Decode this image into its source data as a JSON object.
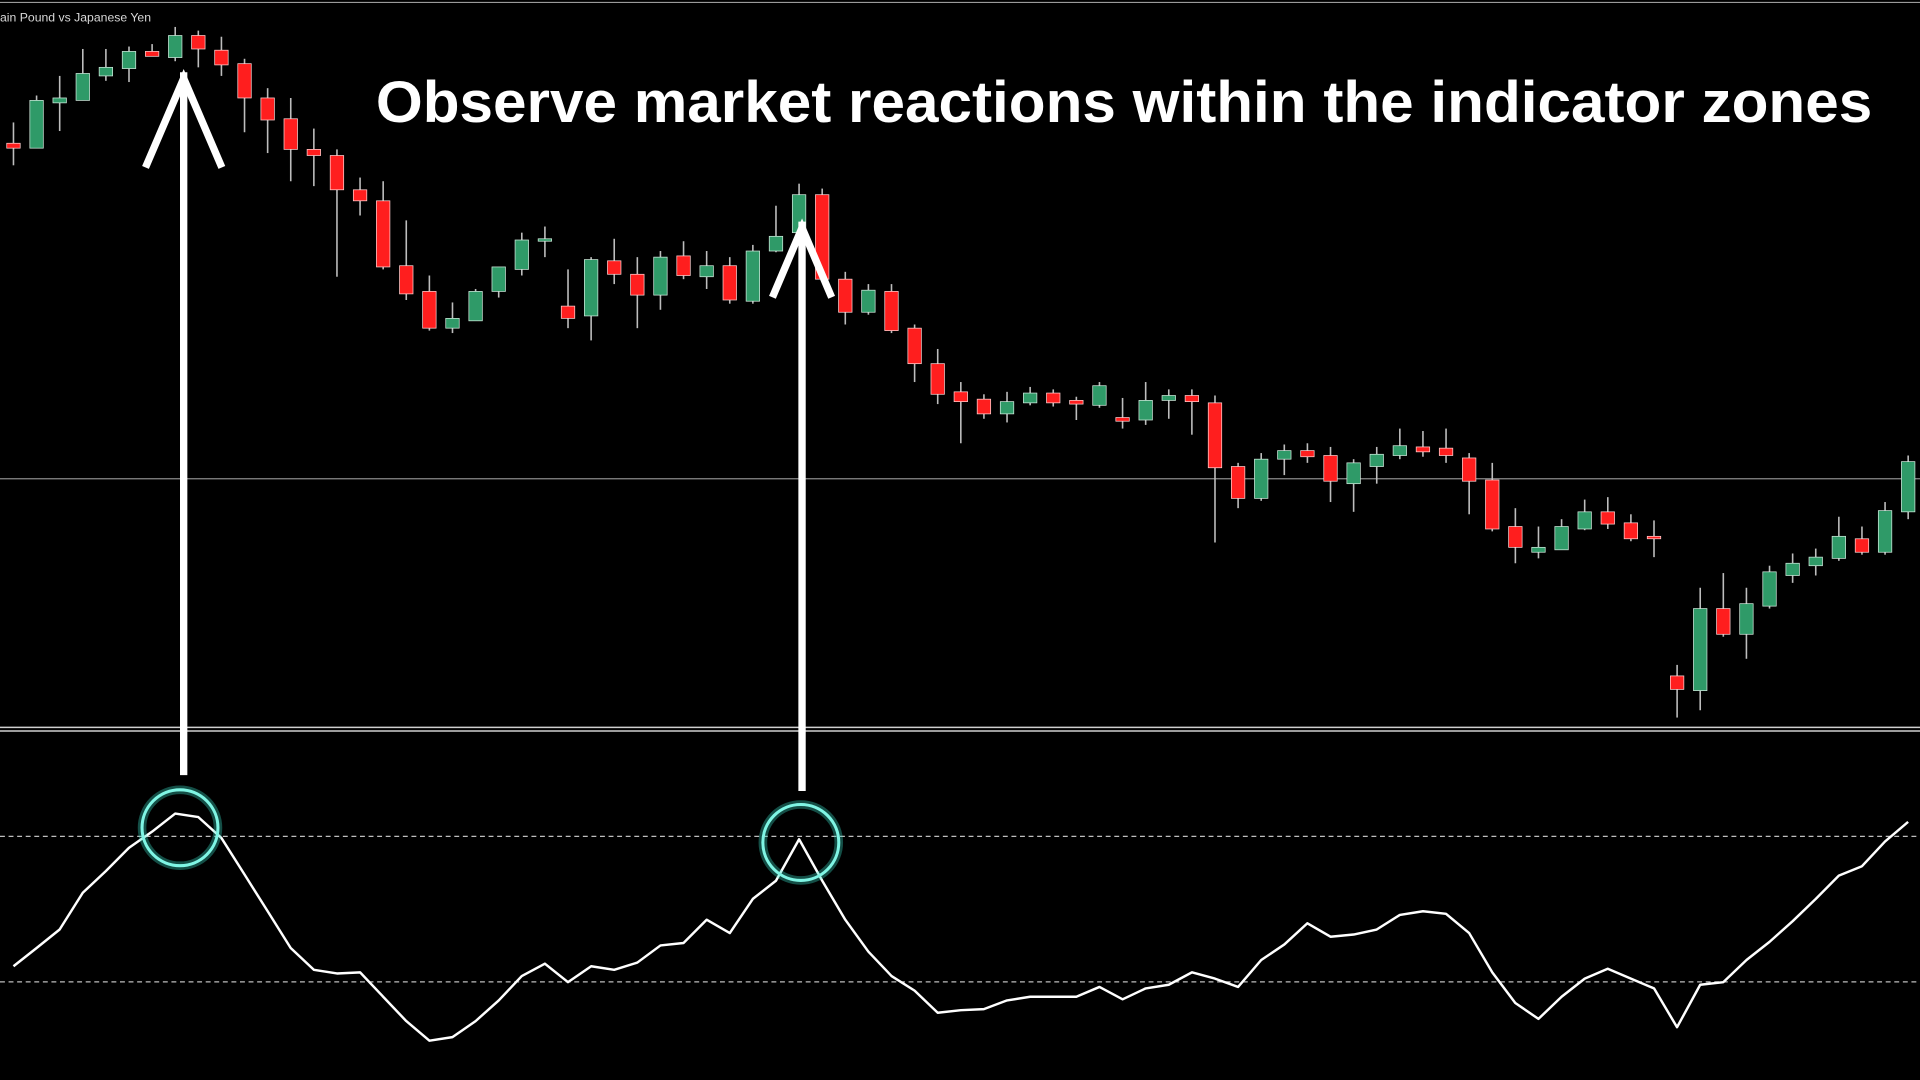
{
  "chart_data": [
    {
      "type": "candlestick",
      "title": "ain Pound vs Japanese Yen",
      "annotation": "Observe market reactions within the indicator zones",
      "open": [
        483,
        479,
        516,
        518,
        538,
        544,
        558,
        553,
        571,
        559,
        548,
        520,
        503,
        478,
        473,
        445,
        436,
        383,
        362,
        332,
        338,
        362,
        380,
        403,
        350,
        342,
        387,
        376,
        359,
        391,
        374,
        383,
        354,
        395,
        410,
        441,
        372,
        345,
        362,
        332,
        303,
        280,
        274,
        262,
        271,
        279,
        273,
        269,
        259,
        257,
        273,
        277,
        271,
        219,
        193,
        225,
        232,
        228,
        205,
        219,
        228,
        235,
        234,
        226,
        208,
        170,
        149,
        151,
        168,
        182,
        173,
        162,
        48,
        36,
        103,
        82,
        105,
        130,
        138,
        144,
        160,
        149,
        182
      ],
      "high": [
        500,
        522,
        538,
        560,
        560,
        562,
        564,
        578,
        575,
        570,
        552,
        528,
        520,
        495,
        478,
        455,
        452,
        420,
        375,
        353,
        364,
        382,
        410,
        415,
        380,
        390,
        405,
        390,
        395,
        403,
        395,
        390,
        400,
        432,
        450,
        446,
        378,
        368,
        368,
        335,
        315,
        288,
        278,
        280,
        284,
        282,
        276,
        288,
        275,
        288,
        282,
        282,
        277,
        222,
        230,
        237,
        238,
        235,
        225,
        235,
        250,
        248,
        250,
        230,
        222,
        185,
        170,
        176,
        192,
        194,
        180,
        175,
        57,
        120,
        132,
        120,
        138,
        148,
        152,
        178,
        170,
        190,
        228
      ],
      "low": [
        465,
        479,
        493,
        518,
        534,
        533,
        554,
        550,
        545,
        538,
        492,
        475,
        452,
        448,
        374,
        424,
        380,
        355,
        330,
        328,
        338,
        357,
        375,
        390,
        332,
        322,
        368,
        332,
        347,
        372,
        364,
        352,
        352,
        394,
        405,
        370,
        335,
        343,
        328,
        288,
        270,
        238,
        258,
        255,
        269,
        268,
        257,
        267,
        250,
        253,
        258,
        245,
        157,
        185,
        191,
        212,
        222,
        190,
        182,
        205,
        225,
        227,
        222,
        180,
        166,
        140,
        144,
        151,
        167,
        168,
        158,
        145,
        14,
        20,
        80,
        62,
        103,
        124,
        130,
        142,
        147,
        147,
        176
      ],
      "close": [
        479,
        518,
        520,
        540,
        545,
        558,
        554,
        571,
        560,
        547,
        520,
        502,
        478,
        473,
        445,
        436,
        382,
        360,
        332,
        340,
        362,
        382,
        404,
        405,
        340,
        388,
        376,
        359,
        390,
        375,
        383,
        355,
        395,
        407,
        441,
        372,
        345,
        363,
        330,
        303,
        278,
        272,
        262,
        272,
        279,
        271,
        270,
        285,
        256,
        273,
        277,
        272,
        218,
        193,
        225,
        232,
        227,
        207,
        222,
        229,
        236,
        231,
        228,
        207,
        168,
        153,
        153,
        170,
        182,
        172,
        160,
        160,
        37,
        103,
        82,
        107,
        133,
        140,
        145,
        162,
        149,
        183,
        223
      ],
      "up_color": "#2f9a68",
      "down_color": "#ff1e1e",
      "ylim": [
        6,
        600
      ],
      "hline": 209
    },
    {
      "type": "line",
      "values": [
        34.3,
        39.3,
        44.4,
        54.5,
        60.5,
        66.9,
        71.3,
        76.3,
        75.3,
        69.6,
        59.5,
        49.4,
        39.3,
        33.3,
        32.3,
        32.6,
        25.9,
        19.2,
        13.8,
        14.8,
        19.2,
        24.9,
        31.6,
        35.0,
        29.9,
        34.3,
        33.3,
        35.3,
        40.0,
        40.7,
        47.1,
        43.4,
        52.8,
        57.8,
        69.2,
        57.8,
        47.1,
        38.3,
        31.6,
        27.6,
        21.5,
        22.2,
        22.5,
        24.9,
        25.9,
        25.9,
        25.9,
        28.6,
        25.2,
        28.2,
        29.2,
        32.6,
        30.9,
        28.6,
        36.0,
        40.3,
        46.1,
        42.4,
        43.0,
        44.4,
        48.4,
        49.4,
        48.7,
        43.4,
        32.6,
        24.2,
        19.8,
        25.9,
        30.9,
        33.6,
        30.9,
        28.2,
        17.5,
        29.2,
        29.9,
        36.0,
        41.0,
        46.7,
        52.8,
        59.2,
        61.8,
        68.6,
        74.0
      ],
      "color": "#ffffff",
      "ylim": [
        3,
        100
      ],
      "levels": [
        70,
        30
      ]
    }
  ]
}
